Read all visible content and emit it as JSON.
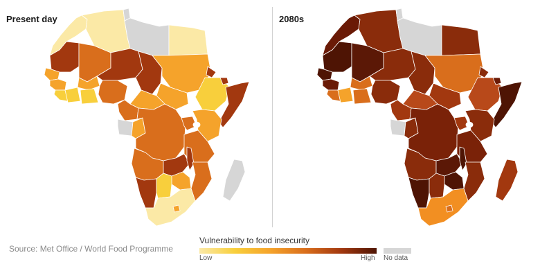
{
  "panels": {
    "left_title": "Present day",
    "right_title": "2080s"
  },
  "source": "Source: Met Office / World Food Programme",
  "legend": {
    "title": "Vulnerability to food insecurity",
    "low_label": "Low",
    "high_label": "High",
    "nodata_label": "No data"
  },
  "colors": {
    "nodata": "#d6d6d6",
    "scale": [
      "#fbe9a6",
      "#f8cf3c",
      "#f5a32b",
      "#d96e1c",
      "#a2380f",
      "#4e1404"
    ]
  }
}
